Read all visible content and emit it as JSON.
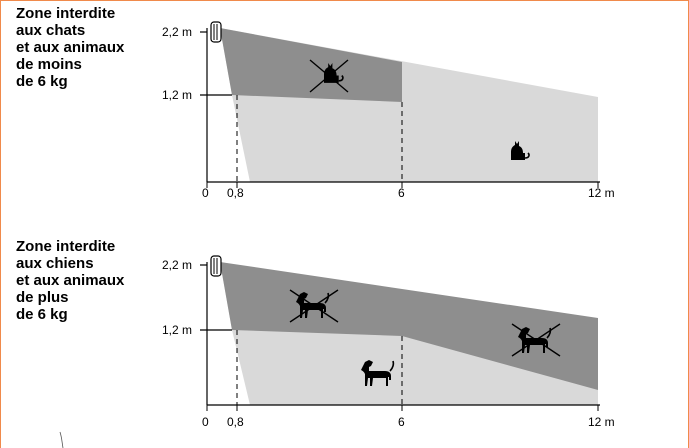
{
  "panels": [
    {
      "label_lines": [
        "Zone interdite",
        "aux chats",
        "et aux animaux",
        "de moins",
        "de 6 kg"
      ],
      "height_labels": [
        "2,2 m",
        "1,2 m"
      ],
      "tick_labels": [
        "0",
        "0,8",
        "6",
        "12 m"
      ],
      "forbidden_icon": "crossed-cat-icon",
      "allowed_icon": "cat-icon"
    },
    {
      "label_lines": [
        "Zone interdite",
        "aux chiens",
        "et aux animaux",
        "de plus",
        "de 6 kg"
      ],
      "height_labels": [
        "2,2 m",
        "1,2 m"
      ],
      "tick_labels": [
        "0",
        "0,8",
        "6",
        "12 m"
      ],
      "forbidden_icon": "crossed-dog-icon",
      "allowed_icon": "dog-icon"
    }
  ],
  "colors": {
    "dark_zone": "#8e8e8e",
    "light_zone": "#d9d9d9",
    "frame": "#f08a4b"
  }
}
